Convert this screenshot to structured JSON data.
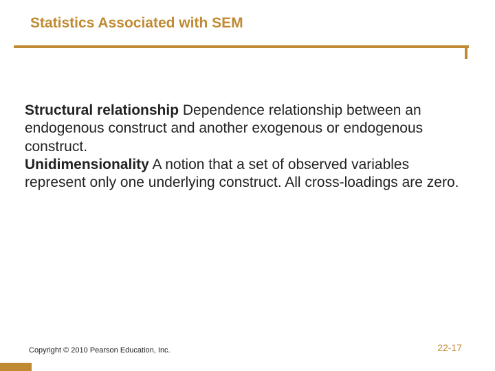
{
  "colors": {
    "title": "#c08a33",
    "rule": "#c08a33",
    "body": "#222222",
    "pagenum": "#c08a33",
    "footer_bar": "#c08a33"
  },
  "title": "Statistics Associated with SEM",
  "body": {
    "term1": "Structural relationship",
    "def1": "   Dependence relationship between an endogenous construct and another exogenous or endogenous construct.",
    "term2": "Unidimensionality",
    "def2": "   A notion that a set of observed variables represent only one underlying construct. All cross-loadings are zero."
  },
  "copyright": "Copyright © 2010 Pearson Education, Inc.",
  "pagenum": "22-17"
}
